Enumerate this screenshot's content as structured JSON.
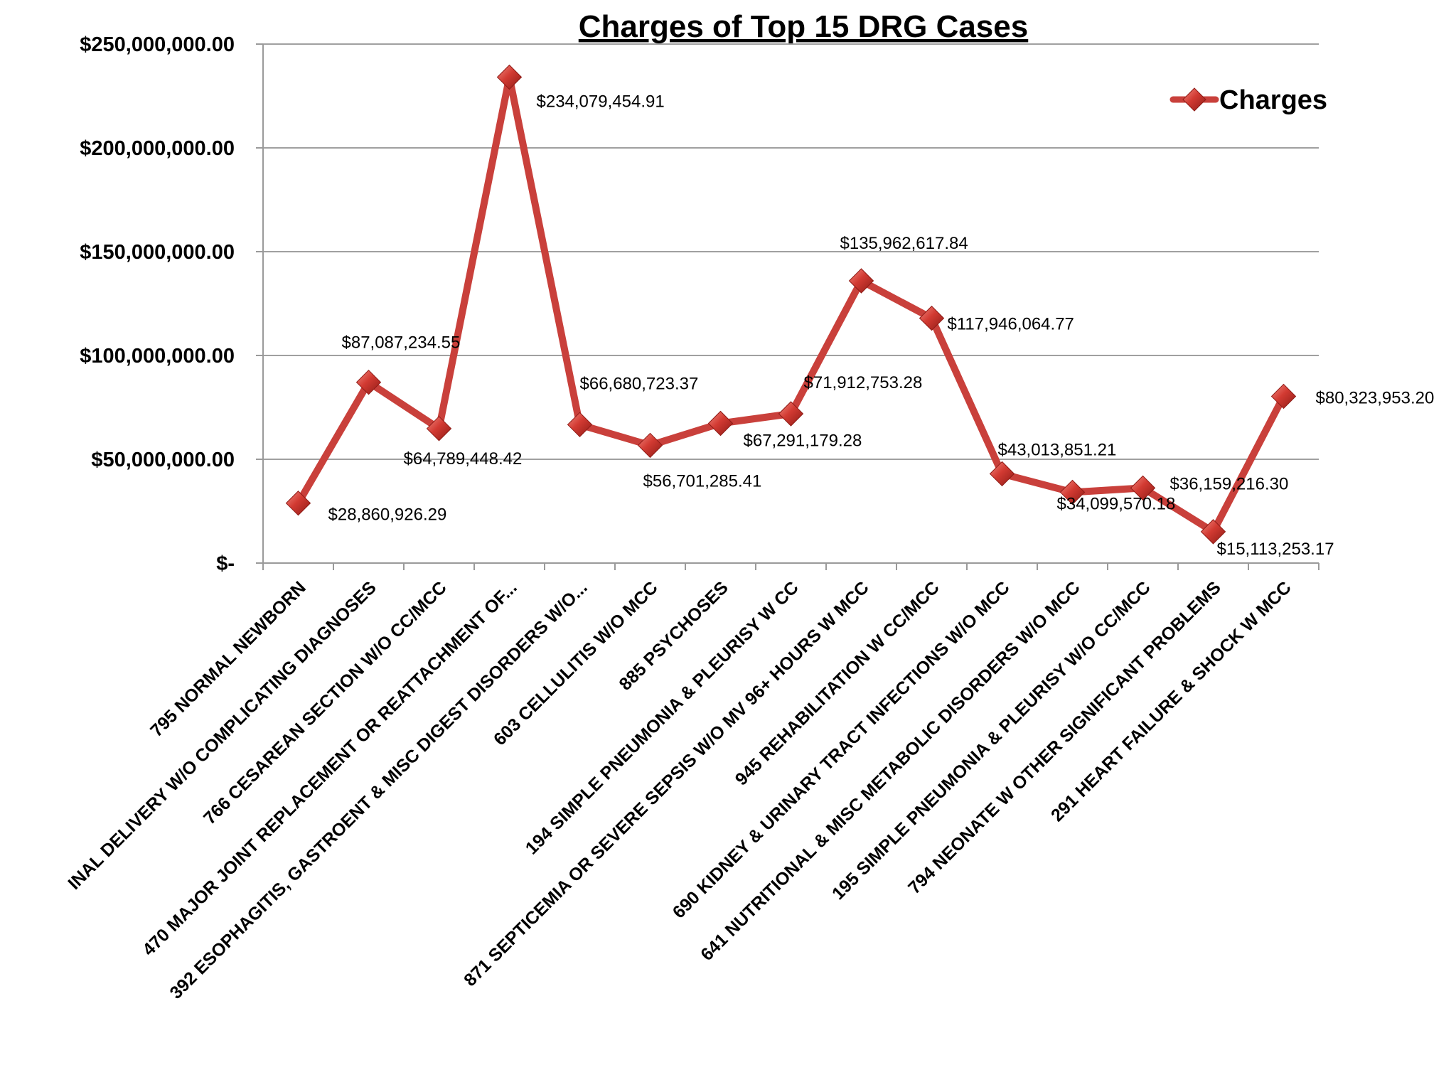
{
  "chart_data": {
    "type": "line",
    "title": "Charges of Top 15 DRG Cases",
    "xlabel": "",
    "ylabel": "",
    "ylim": [
      0,
      250000000
    ],
    "y_ticks": [
      {
        "value": 0,
        "label": "$-"
      },
      {
        "value": 50000000,
        "label": "$50,000,000.00"
      },
      {
        "value": 100000000,
        "label": "$100,000,000.00"
      },
      {
        "value": 150000000,
        "label": "$150,000,000.00"
      },
      {
        "value": 200000000,
        "label": "$200,000,000.00"
      },
      {
        "value": 250000000,
        "label": "$250,000,000.00"
      }
    ],
    "grid": true,
    "legend_position": "top-right",
    "series_color": "#c0392b",
    "categories": [
      "795 NORMAL NEWBORN",
      "INAL DELIVERY W/O COMPLICATING DIAGNOSES",
      "766 CESAREAN SECTION W/O CC/MCC",
      "470 MAJOR JOINT REPLACEMENT OR REATTACHMENT OF...",
      "392 ESOPHAGITIS, GASTROENT & MISC DIGEST DISORDERS W/O...",
      "603 CELLULITIS W/O MCC",
      "885 PSYCHOSES",
      "194 SIMPLE PNEUMONIA & PLEURISY W CC",
      "871 SEPTICEMIA OR SEVERE SEPSIS W/O MV 96+ HOURS W MCC",
      "945 REHABILITATION W CC/MCC",
      "690 KIDNEY & URINARY TRACT INFECTIONS W/O MCC",
      "641 NUTRITIONAL & MISC METABOLIC DISORDERS W/O MCC",
      "195 SIMPLE PNEUMONIA & PLEURISY W/O CC/MCC",
      "794 NEONATE W OTHER SIGNIFICANT PROBLEMS",
      "291 HEART FAILURE & SHOCK W MCC"
    ],
    "series": [
      {
        "name": "Charges",
        "values": [
          28860926.29,
          87087234.55,
          64789448.42,
          234079454.91,
          66680723.37,
          56701285.41,
          67291179.28,
          71912753.28,
          135962617.84,
          117946064.77,
          43013851.21,
          34099570.18,
          36159216.3,
          15113253.17,
          80323953.2
        ],
        "data_labels": [
          "$28,860,926.29",
          "$87,087,234.55",
          "$64,789,448.42",
          "$234,079,454.91",
          "$66,680,723.37",
          "$56,701,285.41",
          "$67,291,179.28",
          "$71,912,753.28",
          "$135,962,617.84",
          "$117,946,064.77",
          "$43,013,851.21",
          "$34,099,570.18",
          "$36,159,216.30",
          "$15,113,253.17",
          "$80,323,953.20"
        ]
      }
    ]
  }
}
